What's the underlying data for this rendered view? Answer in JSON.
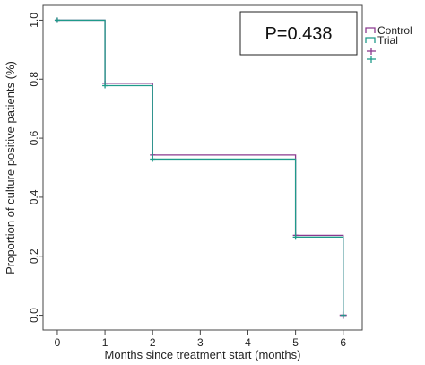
{
  "chart_data": {
    "type": "line",
    "step": true,
    "xlabel": "Months since treatment start (months)",
    "ylabel": "Proportion of culture positive patients (%)",
    "xticks": [
      0,
      1,
      2,
      3,
      4,
      5,
      6
    ],
    "yticks": [
      "0.0",
      "0.2",
      "0.4",
      "0.6",
      "0.8",
      "1.0"
    ],
    "xlim": [
      -0.3,
      6.4
    ],
    "ylim": [
      -0.05,
      1.05
    ],
    "grid": false,
    "legend_position": "top-right-outside",
    "annotation": "P=0.438",
    "series": [
      {
        "name": "Control",
        "color": "#8b3a8f",
        "x": [
          0,
          1,
          2,
          5,
          6
        ],
        "y": [
          1.0,
          0.786,
          0.543,
          0.271,
          0.0
        ],
        "censored": [
          {
            "x": 6,
            "y": 0.0
          }
        ]
      },
      {
        "name": "Trial",
        "color": "#1f9a8a",
        "x": [
          0,
          1,
          2,
          5,
          6
        ],
        "y": [
          1.0,
          0.778,
          0.529,
          0.265,
          0.0
        ],
        "censored": []
      }
    ]
  }
}
